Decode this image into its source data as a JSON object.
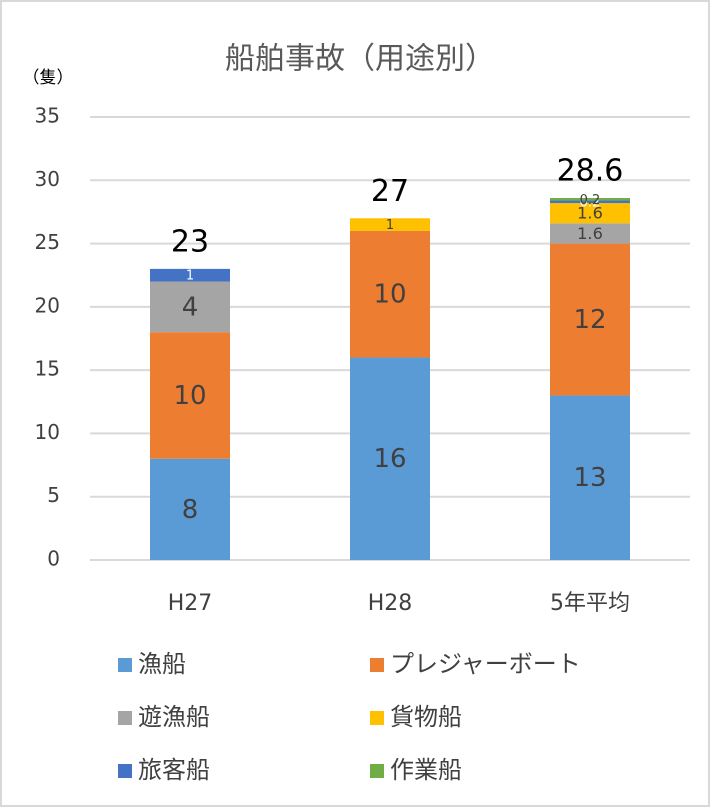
{
  "chart_data": {
    "type": "stacked_bar",
    "title": "船舶事故（用途別）",
    "y_unit": "（隻）",
    "categories": [
      "H27",
      "H28",
      "5年平均"
    ],
    "series": [
      {
        "name": "漁船",
        "color": "#5b9bd5",
        "values": [
          8,
          16,
          13
        ]
      },
      {
        "name": "プレジャーボート",
        "color": "#ed7d31",
        "values": [
          10,
          10,
          12
        ]
      },
      {
        "name": "遊漁船",
        "color": "#a5a5a5",
        "values": [
          4,
          null,
          1.6
        ]
      },
      {
        "name": "貨物船",
        "color": "#ffc000",
        "values": [
          null,
          1,
          1.6
        ]
      },
      {
        "name": "旅客船",
        "color": "#4472c4",
        "values": [
          1,
          null,
          0.2
        ]
      },
      {
        "name": "作業船",
        "color": "#70ad47",
        "values": [
          null,
          null,
          0.2
        ]
      }
    ],
    "totals": [
      23,
      27,
      28.6
    ],
    "ylim": [
      0,
      35
    ],
    "yticks": [
      0,
      5,
      10,
      15,
      20,
      25,
      30,
      35
    ],
    "grid": true
  }
}
